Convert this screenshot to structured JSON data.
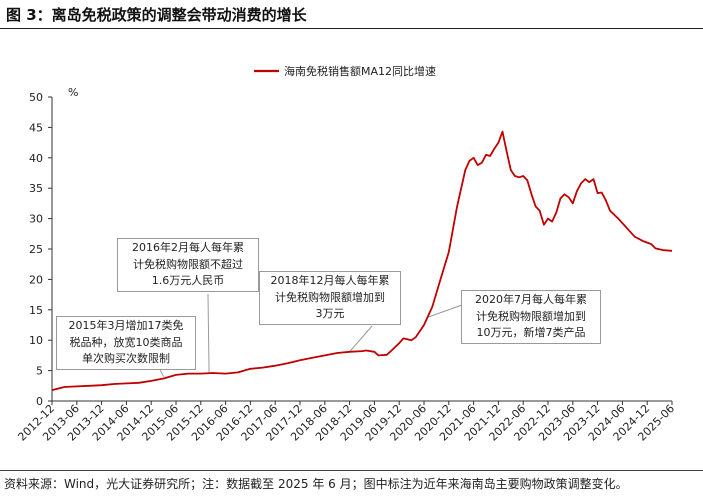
{
  "figure": {
    "title": "图 3：离岛免税政策的调整会带动消费的增长",
    "footnote": "资料来源：Wind，光大证券研究所；注：数据截至 2025 年 6 月；图中标注为近年来海南岛主要购物政策调整变化。"
  },
  "colors": {
    "series": "#c00000",
    "axis": "#333333",
    "callout_border": "#9a9a9a"
  },
  "chart_data": {
    "type": "line",
    "title": "",
    "xlabel": "",
    "ylabel": "%",
    "ylim": [
      0,
      50
    ],
    "yticks": [
      0,
      5,
      10,
      15,
      20,
      25,
      30,
      35,
      40,
      45,
      50
    ],
    "grid": false,
    "legend_position": "top-center",
    "x_tick_labels": [
      "2012-12",
      "2013-06",
      "2013-12",
      "2014-06",
      "2014-12",
      "2015-06",
      "2015-12",
      "2016-06",
      "2016-12",
      "2017-06",
      "2017-12",
      "2018-06",
      "2018-12",
      "2019-06",
      "2019-12",
      "2020-06",
      "2020-12",
      "2021-06",
      "2021-12",
      "2022-06",
      "2022-12",
      "2023-06",
      "2023-12",
      "2024-06",
      "2024-12",
      "2025-06"
    ],
    "series": [
      {
        "name": "海南免税销售额MA12同比增速",
        "color": "#c00000",
        "points": [
          [
            "2012-12",
            1.8
          ],
          [
            "2013-03",
            2.3
          ],
          [
            "2013-06",
            2.4
          ],
          [
            "2013-09",
            2.5
          ],
          [
            "2013-12",
            2.6
          ],
          [
            "2014-03",
            2.8
          ],
          [
            "2014-06",
            2.9
          ],
          [
            "2014-09",
            3.0
          ],
          [
            "2014-12",
            3.3
          ],
          [
            "2015-03",
            3.7
          ],
          [
            "2015-06",
            4.3
          ],
          [
            "2015-09",
            4.5
          ],
          [
            "2015-12",
            4.5
          ],
          [
            "2016-03",
            4.6
          ],
          [
            "2016-06",
            4.5
          ],
          [
            "2016-09",
            4.7
          ],
          [
            "2016-12",
            5.3
          ],
          [
            "2017-03",
            5.5
          ],
          [
            "2017-06",
            5.8
          ],
          [
            "2017-09",
            6.2
          ],
          [
            "2017-12",
            6.7
          ],
          [
            "2018-03",
            7.1
          ],
          [
            "2018-06",
            7.5
          ],
          [
            "2018-09",
            7.9
          ],
          [
            "2018-12",
            8.1
          ],
          [
            "2019-03",
            8.2
          ],
          [
            "2019-04",
            8.3
          ],
          [
            "2019-06",
            8.1
          ],
          [
            "2019-07",
            7.5
          ],
          [
            "2019-09",
            7.6
          ],
          [
            "2019-10",
            8.2
          ],
          [
            "2019-12",
            9.5
          ],
          [
            "2020-01",
            10.3
          ],
          [
            "2020-03",
            10.0
          ],
          [
            "2020-04",
            10.5
          ],
          [
            "2020-06",
            12.5
          ],
          [
            "2020-08",
            15.5
          ],
          [
            "2020-10",
            20.0
          ],
          [
            "2020-12",
            24.5
          ],
          [
            "2021-02",
            32.0
          ],
          [
            "2021-04",
            38.0
          ],
          [
            "2021-05",
            39.5
          ],
          [
            "2021-06",
            40.0
          ],
          [
            "2021-07",
            38.8
          ],
          [
            "2021-08",
            39.2
          ],
          [
            "2021-09",
            40.5
          ],
          [
            "2021-10",
            40.3
          ],
          [
            "2021-11",
            41.5
          ],
          [
            "2021-12",
            42.5
          ],
          [
            "2022-01",
            44.3
          ],
          [
            "2022-02",
            41.0
          ],
          [
            "2022-03",
            38.0
          ],
          [
            "2022-04",
            37.0
          ],
          [
            "2022-05",
            36.8
          ],
          [
            "2022-06",
            37.0
          ],
          [
            "2022-07",
            36.3
          ],
          [
            "2022-08",
            34.0
          ],
          [
            "2022-09",
            32.0
          ],
          [
            "2022-10",
            31.3
          ],
          [
            "2022-11",
            29.0
          ],
          [
            "2022-12",
            30.0
          ],
          [
            "2023-01",
            29.5
          ],
          [
            "2023-02",
            31.0
          ],
          [
            "2023-03",
            33.3
          ],
          [
            "2023-04",
            34.0
          ],
          [
            "2023-05",
            33.5
          ],
          [
            "2023-06",
            32.5
          ],
          [
            "2023-07",
            34.5
          ],
          [
            "2023-08",
            35.8
          ],
          [
            "2023-09",
            36.5
          ],
          [
            "2023-10",
            36.0
          ],
          [
            "2023-11",
            36.5
          ],
          [
            "2023-12",
            34.2
          ],
          [
            "2024-01",
            34.3
          ],
          [
            "2024-02",
            33.0
          ],
          [
            "2024-03",
            31.3
          ],
          [
            "2024-05",
            30.0
          ],
          [
            "2024-07",
            28.5
          ],
          [
            "2024-09",
            27.0
          ],
          [
            "2024-11",
            26.3
          ],
          [
            "2025-01",
            25.8
          ],
          [
            "2025-02",
            25.1
          ],
          [
            "2025-04",
            24.8
          ],
          [
            "2025-06",
            24.7
          ]
        ]
      }
    ],
    "annotations": [
      {
        "lines": [
          "2015年3月增加17类免",
          "税品种，放宽10类商品",
          "单次购买次数限制"
        ],
        "date": "2015-03",
        "value": 4.0
      },
      {
        "lines": [
          "2016年2月每人每年累",
          "计免税购物限额不超过",
          "1.6万元人民币"
        ],
        "date": "2016-02",
        "value": 4.6
      },
      {
        "lines": [
          "2018年12月每人每年累",
          "计免税购物限额增加到",
          "3万元"
        ],
        "date": "2018-12",
        "value": 8.1
      },
      {
        "lines": [
          "2020年7月每人每年累",
          "计免税购物限额增加到",
          "10万元，新增7类产品"
        ],
        "date": "2020-07",
        "value": 13.8
      }
    ]
  }
}
